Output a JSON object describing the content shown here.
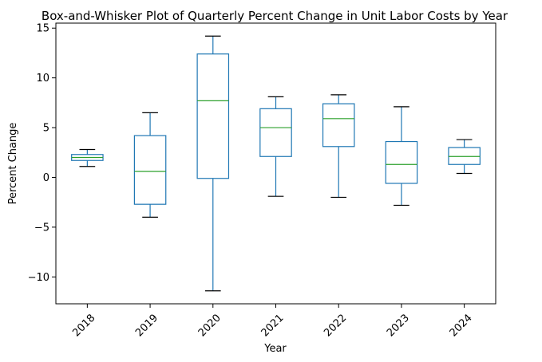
{
  "chart_data": {
    "type": "box",
    "title": "Box-and-Whisker Plot of Quarterly Percent Change in Unit Labor Costs by Year",
    "xlabel": "Year",
    "ylabel": "Percent Change",
    "categories": [
      "2018",
      "2019",
      "2020",
      "2021",
      "2022",
      "2023",
      "2024"
    ],
    "boxes": [
      {
        "category": "2018",
        "whisker_low": 1.1,
        "q1": 1.7,
        "median": 2.0,
        "q3": 2.3,
        "whisker_high": 2.8
      },
      {
        "category": "2019",
        "whisker_low": -4.0,
        "q1": -2.7,
        "median": 0.6,
        "q3": 4.2,
        "whisker_high": 6.5
      },
      {
        "category": "2020",
        "whisker_low": -11.4,
        "q1": -0.1,
        "median": 7.7,
        "q3": 12.4,
        "whisker_high": 14.2
      },
      {
        "category": "2021",
        "whisker_low": -1.9,
        "q1": 2.1,
        "median": 5.0,
        "q3": 6.9,
        "whisker_high": 8.1
      },
      {
        "category": "2022",
        "whisker_low": -2.0,
        "q1": 3.1,
        "median": 5.9,
        "q3": 7.4,
        "whisker_high": 8.3
      },
      {
        "category": "2023",
        "whisker_low": -2.8,
        "q1": -0.6,
        "median": 1.3,
        "q3": 3.6,
        "whisker_high": 7.1
      },
      {
        "category": "2024",
        "whisker_low": 0.4,
        "q1": 1.3,
        "median": 2.1,
        "q3": 3.0,
        "whisker_high": 3.8
      }
    ],
    "yticks": [
      -10,
      -5,
      0,
      5,
      10,
      15
    ],
    "ytick_labels": [
      "−10",
      "−5",
      "0",
      "5",
      "10",
      "15"
    ],
    "ylim": [
      -12.7,
      15.5
    ],
    "grid": false,
    "box_color": "#1f77b4",
    "median_color": "#2ca02c",
    "whisker_cap_color": "#000000"
  }
}
